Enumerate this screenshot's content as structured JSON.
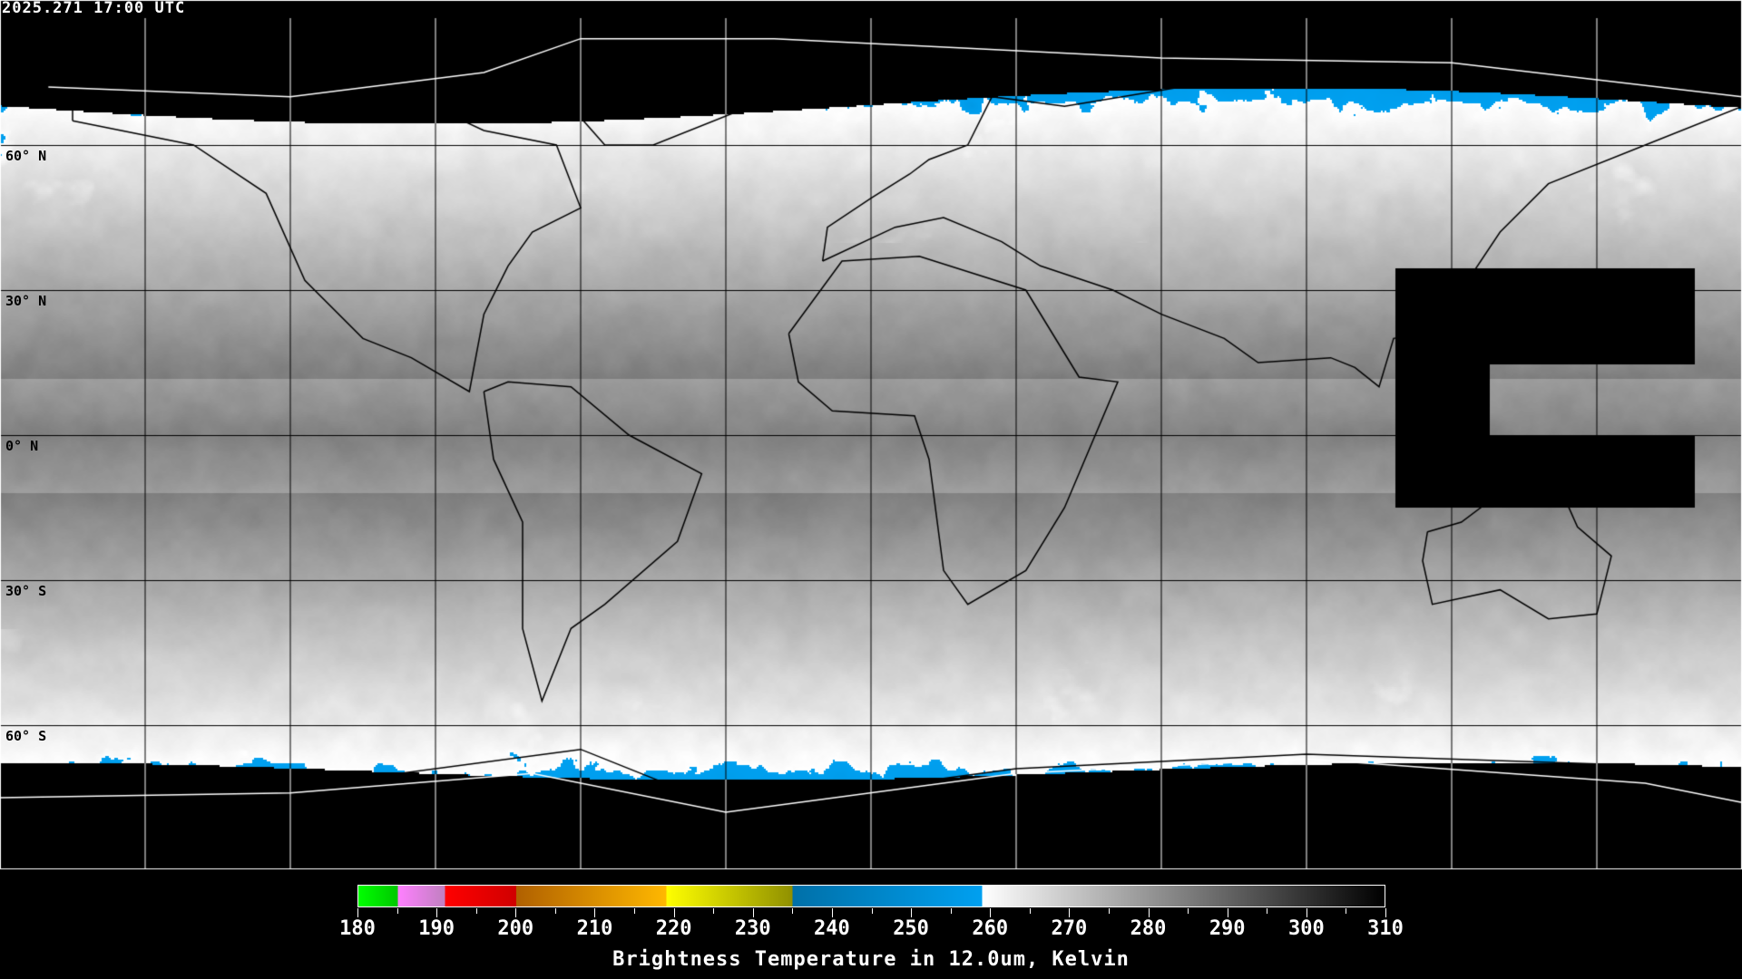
{
  "timestamp": "2025.271 17:00 UTC",
  "map": {
    "projection": "equirectangular",
    "lon_grid_step_deg": 30,
    "lat_labels": [
      "60° N",
      "30° N",
      "0° N",
      "30° S",
      "60° S"
    ],
    "missing_data_region": "western Pacific (black)"
  },
  "colorbar": {
    "label": "Brightness Temperature in 12.0um, Kelvin",
    "min": 180,
    "max": 310,
    "ticks": [
      "180",
      "190",
      "200",
      "210",
      "220",
      "230",
      "240",
      "250",
      "260",
      "270",
      "280",
      "290",
      "300",
      "310"
    ],
    "segments": [
      {
        "from": 180,
        "to": 185,
        "colors": [
          "#00ff00",
          "#00c800"
        ]
      },
      {
        "from": 185,
        "to": 191,
        "colors": [
          "#ff80ff",
          "#c080c0"
        ]
      },
      {
        "from": 191,
        "to": 200,
        "colors": [
          "#ff0000",
          "#d00000"
        ]
      },
      {
        "from": 200,
        "to": 219,
        "colors": [
          "#b06000",
          "#ffb800"
        ]
      },
      {
        "from": 219,
        "to": 235,
        "colors": [
          "#ffff00",
          "#909000"
        ]
      },
      {
        "from": 235,
        "to": 259,
        "colors": [
          "#0070a8",
          "#00a0f0"
        ]
      },
      {
        "from": 259,
        "to": 310,
        "colors": [
          "#ffffff",
          "#000000"
        ]
      }
    ]
  }
}
